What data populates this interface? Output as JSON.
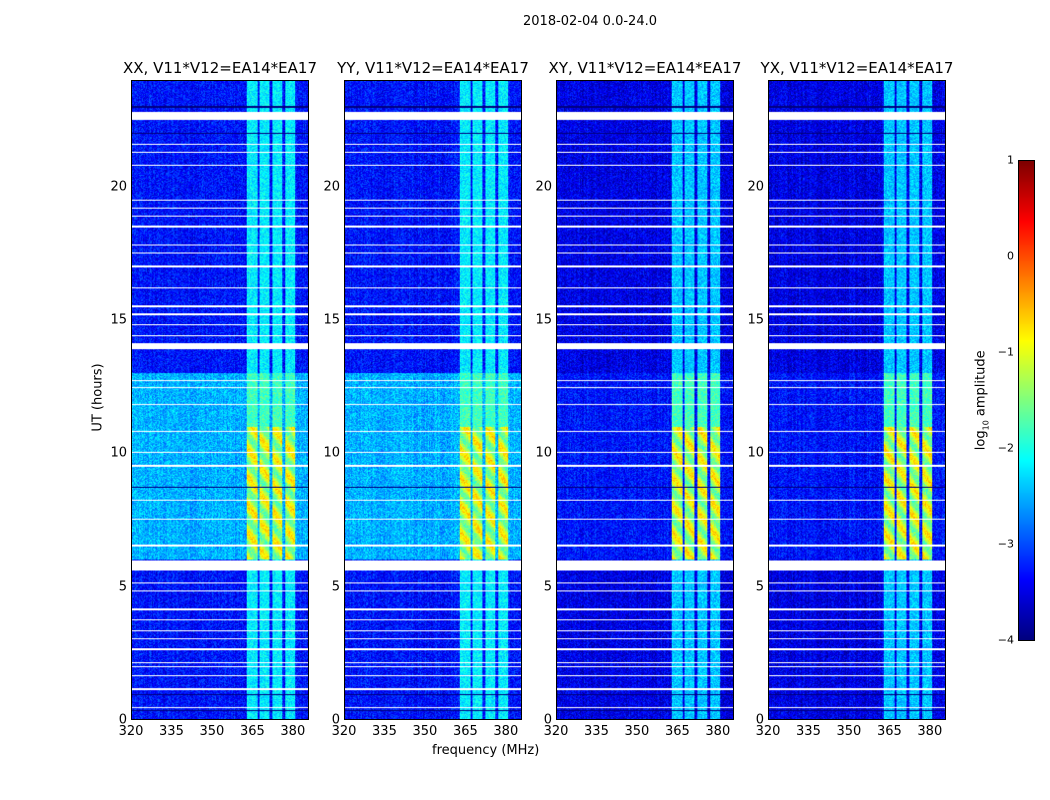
{
  "chart_data": {
    "type": "heatmap",
    "title": "2018-02-04 0.0-24.0",
    "xlabel": "frequency (MHz)",
    "ylabel": "UT (hours)",
    "xlim": [
      320,
      386
    ],
    "ylim": [
      0,
      24
    ],
    "xticks": [
      "320",
      "335",
      "350",
      "365",
      "380"
    ],
    "xtick_values": [
      320,
      335,
      350,
      365,
      380
    ],
    "yticks": [
      "0",
      "5",
      "10",
      "15",
      "20"
    ],
    "ytick_values": [
      0,
      5,
      10,
      15,
      20
    ],
    "panels": [
      {
        "title": "XX, V11*V12=EA14*EA17",
        "background_log": -3.3,
        "elevated_log": -2.5,
        "elevated_hours": [
          6.0,
          13.0
        ]
      },
      {
        "title": "YY, V11*V12=EA14*EA17",
        "background_log": -3.3,
        "elevated_log": -2.5,
        "elevated_hours": [
          6.0,
          13.0
        ]
      },
      {
        "title": "XY, V11*V12=EA14*EA17",
        "background_log": -3.5,
        "elevated_log": -3.3,
        "elevated_hours": [
          6.0,
          13.0
        ]
      },
      {
        "title": "YX, V11*V12=EA14*EA17",
        "background_log": -3.5,
        "elevated_log": -3.3,
        "elevated_hours": [
          6.0,
          13.0
        ]
      }
    ],
    "rfi_channels_mhz": [
      [
        363,
        367
      ],
      [
        368,
        371.5
      ],
      [
        372.5,
        376.5
      ],
      [
        377.5,
        381
      ]
    ],
    "rfi_log_quiet": -2.2,
    "rfi_log_strong": -0.3,
    "rfi_strong_hours": [
      6.0,
      11.0
    ],
    "flagged_hours": [
      [
        22.55,
        22.85
      ],
      [
        21.6,
        21.65
      ],
      [
        21.3,
        21.35
      ],
      [
        20.8,
        20.85
      ],
      [
        19.5,
        19.55
      ],
      [
        19.2,
        19.25
      ],
      [
        18.9,
        18.95
      ],
      [
        18.5,
        18.55
      ],
      [
        17.8,
        17.85
      ],
      [
        17.5,
        17.55
      ],
      [
        17.0,
        17.05
      ],
      [
        16.2,
        16.25
      ],
      [
        15.5,
        15.55
      ],
      [
        15.2,
        15.25
      ],
      [
        14.8,
        14.85
      ],
      [
        14.4,
        14.45
      ],
      [
        13.9,
        14.15
      ],
      [
        12.7,
        12.75
      ],
      [
        12.45,
        12.5
      ],
      [
        11.8,
        11.85
      ],
      [
        10.8,
        10.85
      ],
      [
        10.0,
        10.05
      ],
      [
        9.5,
        9.55
      ],
      [
        8.2,
        8.25
      ],
      [
        7.5,
        7.55
      ],
      [
        6.5,
        6.55
      ],
      [
        5.6,
        5.95
      ],
      [
        5.1,
        5.15
      ],
      [
        4.8,
        4.85
      ],
      [
        4.1,
        4.15
      ],
      [
        3.7,
        3.75
      ],
      [
        3.3,
        3.35
      ],
      [
        3.0,
        3.05
      ],
      [
        2.6,
        2.65
      ],
      [
        2.1,
        2.15
      ],
      [
        1.95,
        2.0
      ],
      [
        1.6,
        1.65
      ],
      [
        1.1,
        1.15
      ],
      [
        0.4,
        0.45
      ]
    ],
    "dark_hours": [
      [
        23.0,
        23.05
      ],
      [
        22.0,
        22.05
      ],
      [
        8.7,
        8.75
      ],
      [
        0.9,
        0.95
      ],
      [
        0.3,
        0.33
      ]
    ],
    "colorbar": {
      "label": "log10 amplitude",
      "label_base": "log",
      "label_sub": "10",
      "label_rest": " amplitude",
      "range": [
        -4,
        1
      ],
      "ticks": [
        "−4",
        "−3",
        "−2",
        "−1",
        "0",
        "1"
      ],
      "tick_values": [
        -4,
        -3,
        -2,
        -1,
        0,
        1
      ],
      "colormap": "jet"
    }
  }
}
